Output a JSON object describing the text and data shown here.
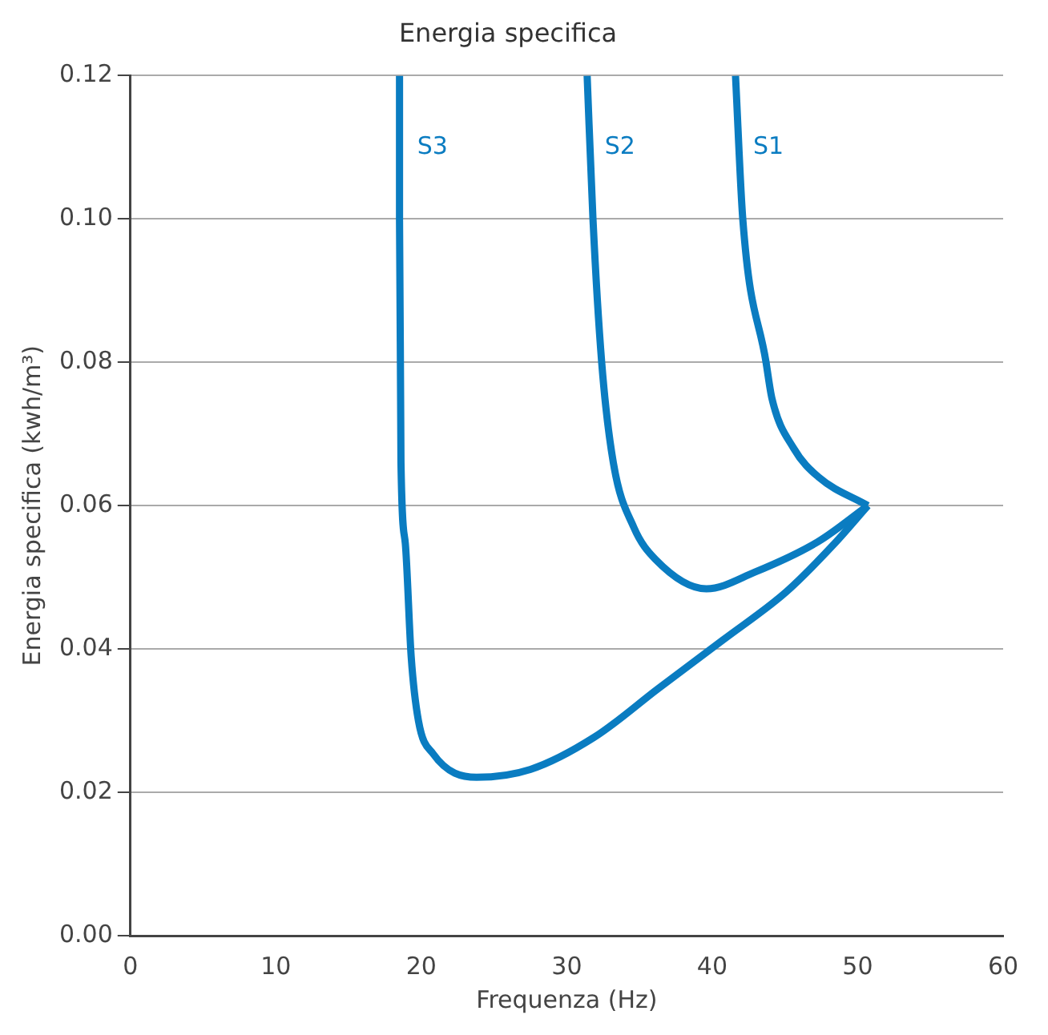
{
  "chart_data": {
    "type": "line",
    "title": "Energia specifica",
    "xlabel": "Frequenza (Hz)",
    "ylabel": "Energia specifica (kwh/m³)",
    "xlim": [
      0,
      60
    ],
    "xticks": [
      0,
      10,
      20,
      30,
      40,
      50,
      60
    ],
    "ylim": [
      0,
      0.12
    ],
    "yticks": [
      {
        "value": 0,
        "label": "0.00"
      },
      {
        "value": 0.02,
        "label": "0.02"
      },
      {
        "value": 0.04,
        "label": "0.04"
      },
      {
        "value": 0.06,
        "label": "0.06"
      },
      {
        "value": 0.08,
        "label": "0.08"
      },
      {
        "value": 0.1,
        "label": "0.10"
      },
      {
        "value": 0.12,
        "label": "0.12"
      }
    ],
    "grid": "y",
    "legend": false,
    "marker": "none",
    "line_style": "solid",
    "series": [
      {
        "name": "S1",
        "color": "#0a7cc1",
        "x": [
          41.6,
          42.1,
          43.7,
          44.1,
          45.6,
          47.3,
          50.7
        ],
        "values": [
          0.12,
          0.1,
          0.08,
          0.075,
          0.068,
          0.064,
          0.06
        ]
      },
      {
        "name": "S2",
        "color": "#0a7cc1",
        "x": [
          31.4,
          31.8,
          32.4,
          33.2,
          34.6,
          36.1,
          39.6,
          42.9,
          47.3,
          50.7
        ],
        "values": [
          0.12,
          0.1,
          0.08,
          0.066,
          0.057,
          0.0525,
          0.0484,
          0.0507,
          0.055,
          0.06
        ]
      },
      {
        "name": "S3",
        "color": "#0a7cc1",
        "x": [
          18.5,
          18.5,
          18.6,
          18.9,
          19.3,
          19.8,
          20.8,
          23.8,
          27.5,
          31.9,
          36.3,
          40.7,
          45.1,
          48.4,
          50.7
        ],
        "values": [
          0.12,
          0.1,
          0.066,
          0.0547,
          0.039,
          0.03,
          0.0254,
          0.0221,
          0.0232,
          0.0277,
          0.0345,
          0.0412,
          0.048,
          0.0547,
          0.06
        ]
      }
    ]
  }
}
